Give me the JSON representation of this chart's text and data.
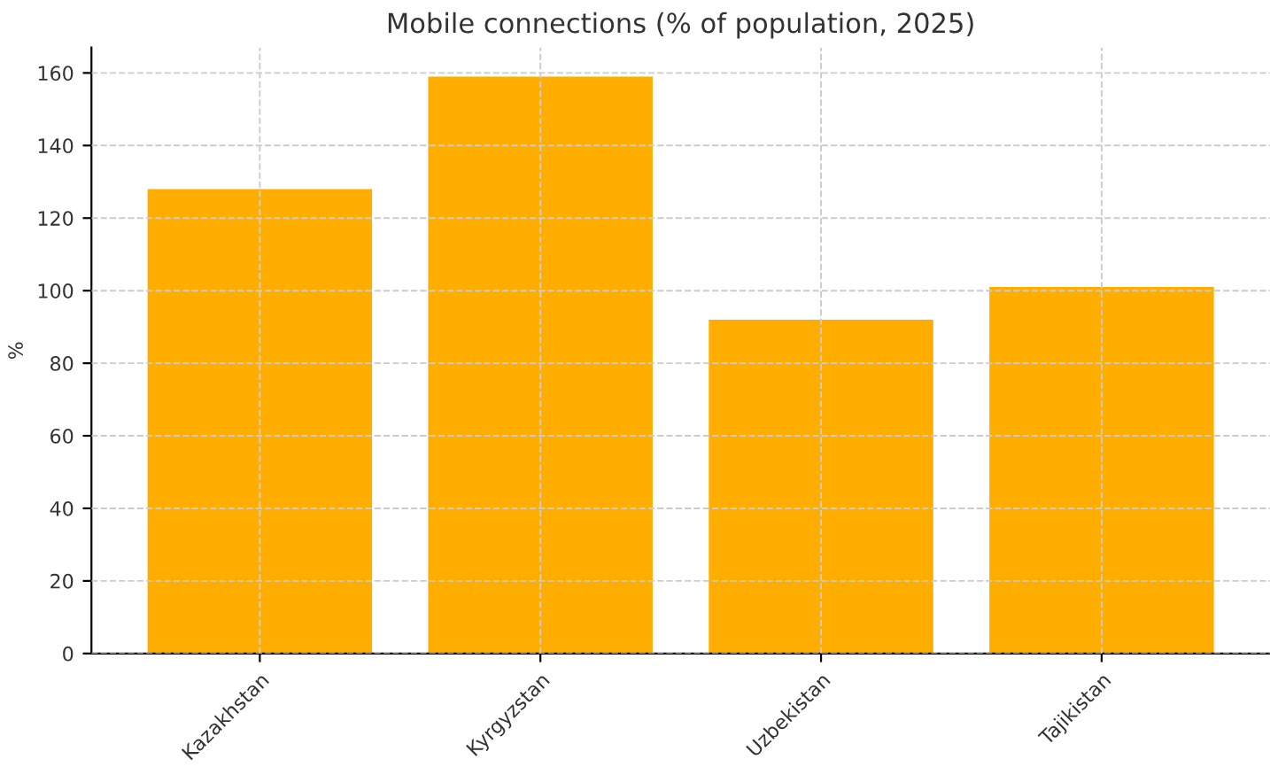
{
  "chart_data": {
    "type": "bar",
    "title": "Mobile connections (% of population, 2025)",
    "ylabel": "%",
    "categories": [
      "Kazakhstan",
      "Kyrgyzstan",
      "Uzbekistan",
      "Tajikistan"
    ],
    "values": [
      128,
      159,
      92,
      101
    ],
    "color": "#ffae00",
    "ylim": [
      0,
      167
    ],
    "yticks": [
      0,
      20,
      40,
      60,
      80,
      100,
      120,
      140,
      160
    ],
    "grid": true
  }
}
